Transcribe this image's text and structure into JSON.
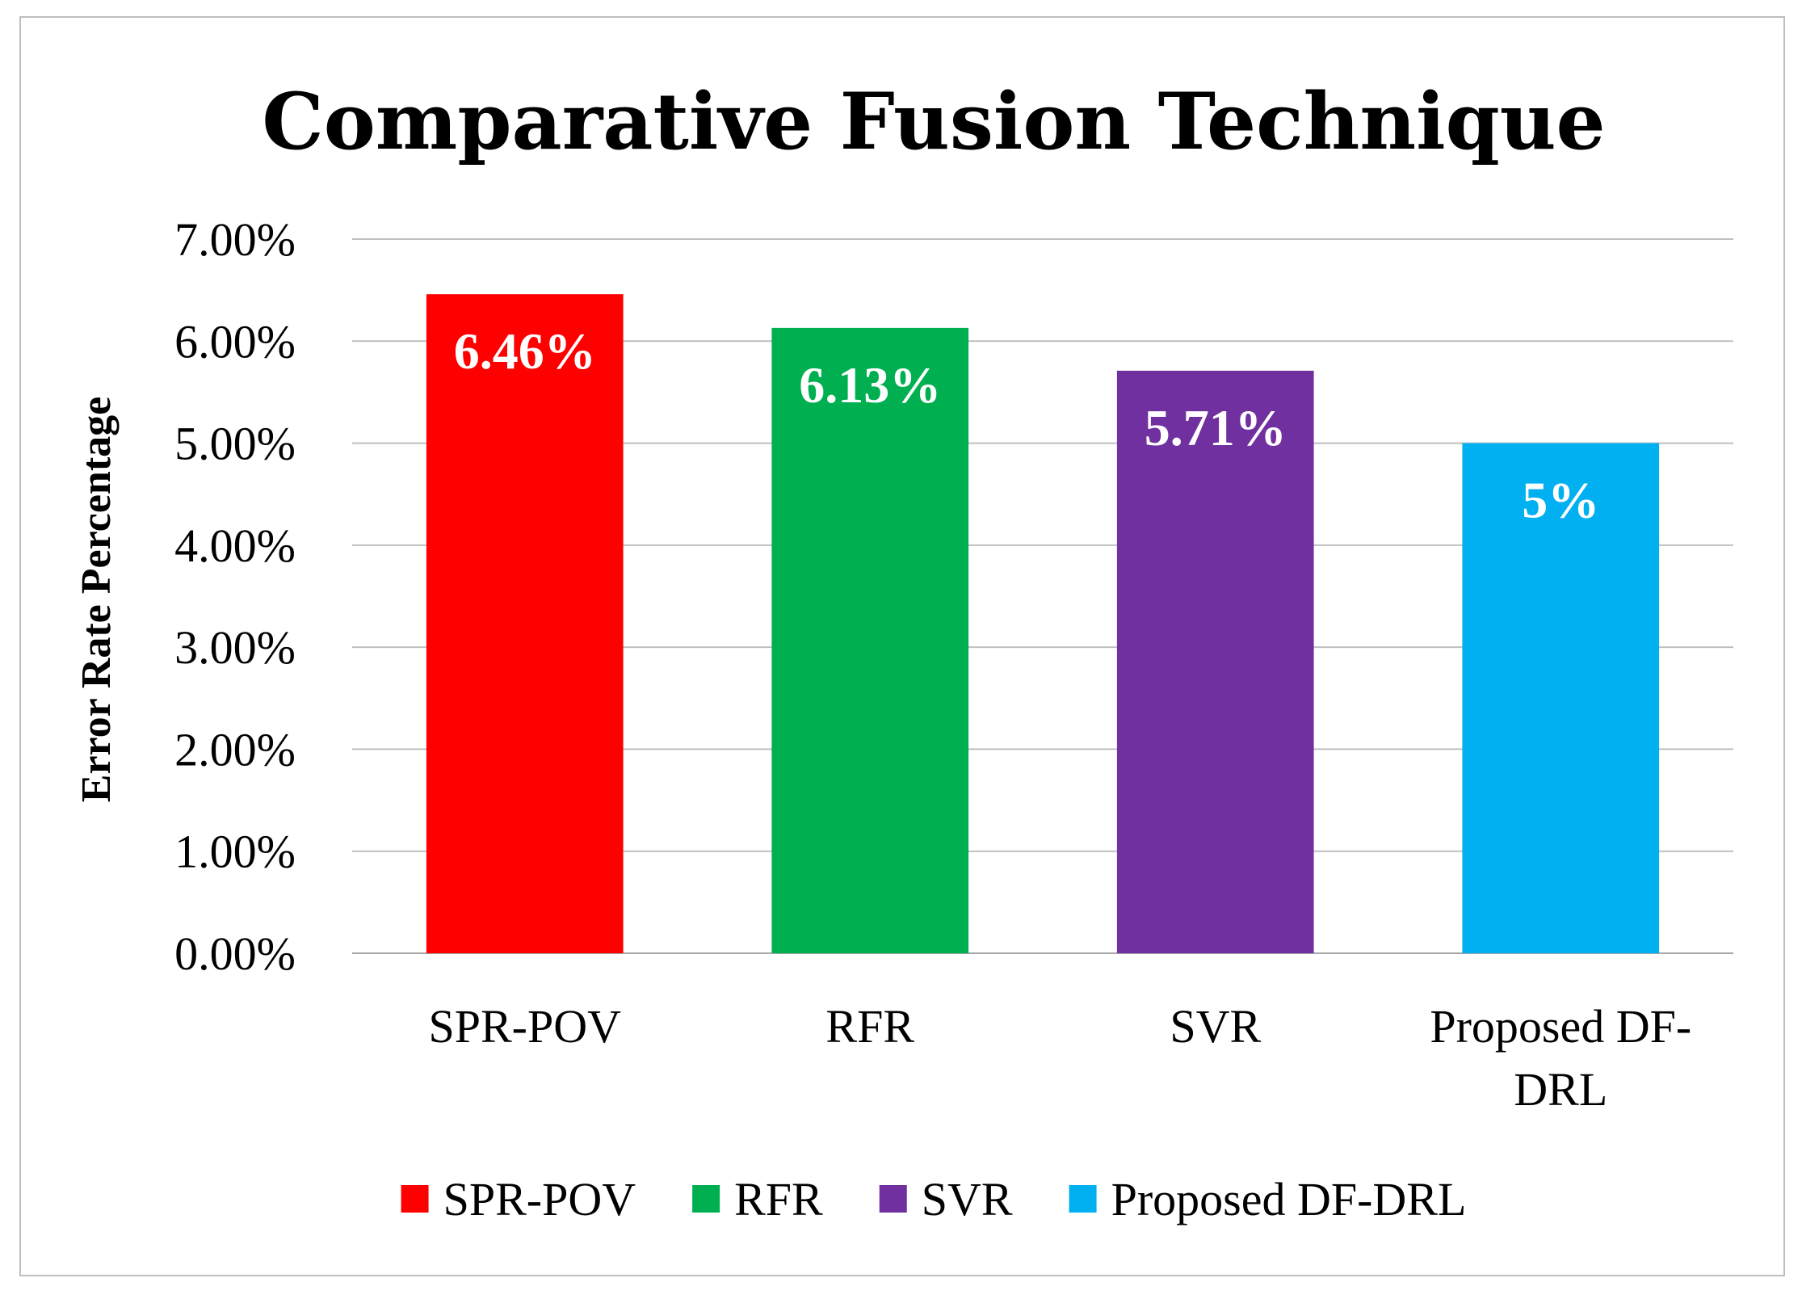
{
  "chart_data": {
    "type": "bar",
    "title": "Comparative Fusion Technique",
    "xlabel": "",
    "ylabel": "Error Rate Percentage",
    "ylim": [
      0,
      7
    ],
    "y_ticks": [
      {
        "value": 0,
        "label": "0.00%"
      },
      {
        "value": 1,
        "label": "1.00%"
      },
      {
        "value": 2,
        "label": "2.00%"
      },
      {
        "value": 3,
        "label": "3.00%"
      },
      {
        "value": 4,
        "label": "4.00%"
      },
      {
        "value": 5,
        "label": "5.00%"
      },
      {
        "value": 6,
        "label": "6.00%"
      },
      {
        "value": 7,
        "label": "7.00%"
      }
    ],
    "grid": true,
    "legend_position": "bottom",
    "categories": [
      {
        "name": "SPR-POV",
        "lines": [
          "SPR-POV"
        ],
        "value": 6.46,
        "data_label": "6.46%",
        "color": "#ff0000",
        "slug": "spr-pov"
      },
      {
        "name": "RFR",
        "lines": [
          "RFR"
        ],
        "value": 6.13,
        "data_label": "6.13%",
        "color": "#00b050",
        "slug": "rfr"
      },
      {
        "name": "SVR",
        "lines": [
          "SVR"
        ],
        "value": 5.71,
        "data_label": "5.71%",
        "color": "#7030a0",
        "slug": "svr"
      },
      {
        "name": "Proposed DF-DRL",
        "lines": [
          "Proposed DF-",
          "DRL"
        ],
        "value": 5.0,
        "data_label": "5%",
        "color": "#00b0f0",
        "slug": "proposed-df-drl"
      }
    ],
    "legend": [
      {
        "label": "SPR-POV",
        "color": "#ff0000"
      },
      {
        "label": "RFR",
        "color": "#00b050"
      },
      {
        "label": "SVR",
        "color": "#7030a0"
      },
      {
        "label": "Proposed DF-DRL",
        "color": "#00b0f0"
      }
    ]
  }
}
